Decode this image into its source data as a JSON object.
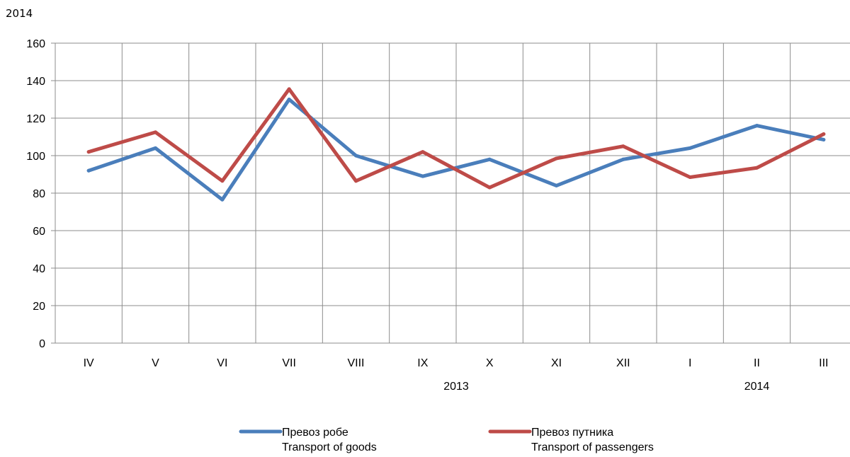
{
  "corner_label": "2014",
  "chart_data": {
    "type": "line",
    "categories": [
      "IV",
      "V",
      "VI",
      "VII",
      "VIII",
      "IX",
      "X",
      "XI",
      "XII",
      "I",
      "II",
      "III"
    ],
    "year_labels": [
      "2013",
      "2014"
    ],
    "ylim": [
      0,
      160
    ],
    "yticks": [
      0,
      20,
      40,
      60,
      80,
      100,
      120,
      140,
      160
    ],
    "grid": true,
    "legend_position": "bottom",
    "series": [
      {
        "name": "Превоз робе",
        "name_en": "Transport of goods",
        "color": "#4a7ebb",
        "values": [
          92,
          104,
          76.5,
          130,
          100,
          89,
          98,
          84,
          98,
          104,
          116,
          108.5
        ]
      },
      {
        "name": "Превоз путника",
        "name_en": "Transport of passengers",
        "color": "#be4b48",
        "values": [
          102,
          112.5,
          86.5,
          135.5,
          86.5,
          102,
          83,
          98.5,
          105,
          88.5,
          93.5,
          111.5
        ]
      }
    ]
  }
}
